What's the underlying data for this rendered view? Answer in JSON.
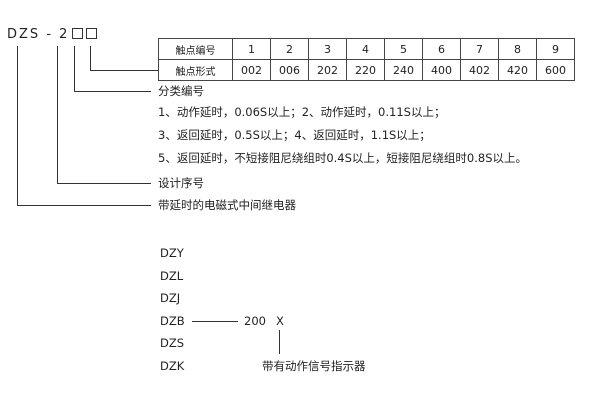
{
  "model": {
    "prefix": "DZS",
    "dash": "-",
    "digit": "2"
  },
  "contact_table": {
    "row_headers": [
      "触点编号",
      "触点形式"
    ],
    "numbers": [
      "1",
      "2",
      "3",
      "4",
      "5",
      "6",
      "7",
      "8",
      "9"
    ],
    "forms": [
      "002",
      "006",
      "202",
      "220",
      "240",
      "400",
      "402",
      "420",
      "600"
    ]
  },
  "labels": {
    "classification": "分类编号",
    "class_lines": [
      "1、动作延时，0.06S以上；2、动作延时，0.11S以上；",
      "3、返回延时，0.5S以上；4、返回延时，1.1S以上；",
      "5、返回延时，不短接阻尼绕组时0.4S以上，短接阻尼绕组时0.8S以上。"
    ],
    "design_number": "设计序号",
    "relay_desc": "带延时的电磁式中间继电器"
  },
  "series": [
    "DZY",
    "DZL",
    "DZJ",
    "DZB",
    "DZS",
    "DZK"
  ],
  "example": {
    "number": "200",
    "suffix": "X",
    "suffix_desc": "带有动作信号指示器"
  }
}
